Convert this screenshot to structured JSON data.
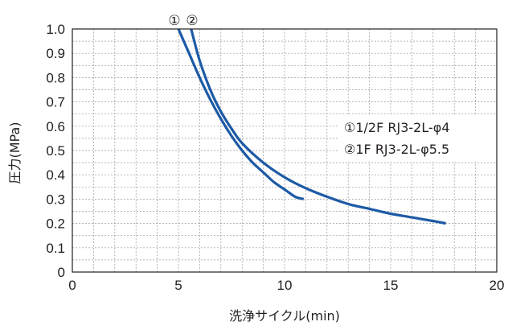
{
  "chart_data": {
    "type": "line",
    "xlabel": "洗浄サイクル(min)",
    "ylabel": "圧力(MPa)",
    "xlim": [
      0,
      20
    ],
    "ylim": [
      0,
      1.0
    ],
    "x_ticks": [
      "0",
      "5",
      "10",
      "15",
      "20"
    ],
    "y_ticks": [
      "0",
      "0.1",
      "0.2",
      "0.3",
      "0.4",
      "0.5",
      "0.6",
      "0.7",
      "0.8",
      "0.9",
      "1.0"
    ],
    "grid": true,
    "legend_position": "right",
    "legend": [
      "①1/2F RJ3-2L-φ4",
      "②1F RJ3-2L-φ5.5"
    ],
    "curve_labels": [
      "①",
      "②"
    ],
    "series": [
      {
        "x": [
          5.0,
          5.5,
          6.0,
          6.5,
          7.0,
          7.5,
          8.0,
          8.5,
          9.0,
          9.5,
          10.0,
          10.5,
          10.9
        ],
        "y": [
          1.0,
          0.9,
          0.8,
          0.71,
          0.63,
          0.56,
          0.5,
          0.45,
          0.41,
          0.37,
          0.34,
          0.31,
          0.3
        ],
        "color": "#1d5aa6"
      },
      {
        "x": [
          5.6,
          6.0,
          6.5,
          7.0,
          7.5,
          8.0,
          9.0,
          10.0,
          11.0,
          12.0,
          13.0,
          14.0,
          15.0,
          16.0,
          17.0,
          17.6
        ],
        "y": [
          1.0,
          0.87,
          0.75,
          0.66,
          0.59,
          0.53,
          0.45,
          0.39,
          0.345,
          0.31,
          0.28,
          0.26,
          0.24,
          0.225,
          0.21,
          0.2
        ],
        "color": "#1d5aa6"
      }
    ],
    "colors": {
      "axis": "#231f20",
      "grid": "#9a9a9a",
      "line": "#1d5aa6"
    }
  }
}
